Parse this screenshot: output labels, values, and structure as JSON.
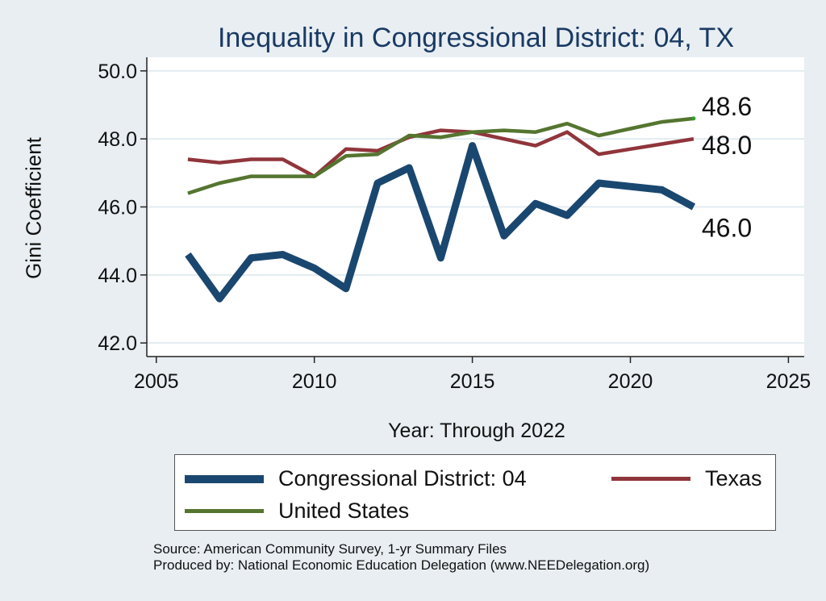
{
  "chart_data": {
    "type": "line",
    "title": "Inequality in Congressional District:  04, TX",
    "xlabel": "Year: Through 2022",
    "ylabel": "Gini Coefficient",
    "xlim": [
      2004.7,
      2025.5
    ],
    "ylim": [
      41.6,
      50.4
    ],
    "xticks": [
      2005,
      2010,
      2015,
      2020,
      2025
    ],
    "xtick_labels": [
      "2005",
      "2010",
      "2015",
      "2020",
      "2025"
    ],
    "yticks": [
      42,
      44,
      46,
      48,
      50
    ],
    "ytick_labels": [
      "42.0",
      "44.0",
      "46.0",
      "48.0",
      "50.0"
    ],
    "grid": true,
    "x": [
      2006,
      2007,
      2008,
      2009,
      2010,
      2011,
      2012,
      2013,
      2014,
      2015,
      2016,
      2017,
      2018,
      2019,
      2020,
      2021,
      2022
    ],
    "series": [
      {
        "name": "Congressional District:  04",
        "color": "#1a476f",
        "values": [
          44.6,
          43.3,
          44.5,
          44.6,
          44.2,
          43.6,
          46.7,
          47.15,
          44.5,
          47.8,
          45.15,
          46.1,
          45.75,
          46.7,
          46.6,
          46.5,
          46.0
        ],
        "end_label": "46.0"
      },
      {
        "name": "Texas",
        "color": "#90353b",
        "values": [
          47.4,
          47.3,
          47.4,
          47.4,
          46.9,
          47.7,
          47.65,
          48.05,
          48.25,
          48.2,
          48.0,
          47.8,
          48.2,
          47.55,
          47.7,
          47.85,
          48.0
        ],
        "end_label": "48.0"
      },
      {
        "name": "United States",
        "color": "#55752f",
        "values": [
          46.4,
          46.7,
          46.9,
          46.9,
          46.9,
          47.5,
          47.55,
          48.1,
          48.05,
          48.2,
          48.25,
          48.2,
          48.45,
          48.1,
          48.3,
          48.5,
          48.6
        ],
        "end_label": "48.6"
      }
    ]
  },
  "notes": {
    "source": "Source: American Community Survey, 1-yr Summary Files",
    "produced": "Produced by: National Economic Education Delegation (www.NEEDelegation.org)"
  }
}
